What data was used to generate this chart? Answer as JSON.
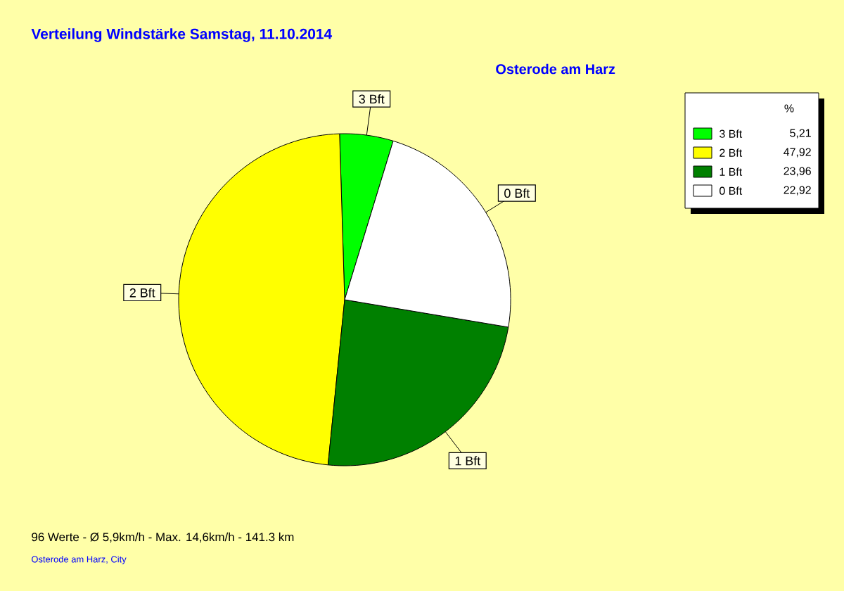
{
  "chart_data": {
    "type": "pie",
    "title": "Verteilung Windstärke  Samstag, 11.10.2014",
    "subtitle": "Osterode am Harz",
    "categories": [
      "3 Bft",
      "2 Bft",
      "1 Bft",
      "0 Bft"
    ],
    "values": [
      5.21,
      47.92,
      23.96,
      22.92
    ],
    "colors": [
      "#00ff00",
      "#ffff00",
      "#008000",
      "#ffffff"
    ],
    "value_labels": [
      "5,21",
      "47,92",
      "23,96",
      "22,92"
    ],
    "legend_title": "%",
    "legend": "top right",
    "annotations": [
      "96 Werte - Ø 5,9km/h - Max. 14,6km/h - 141.3 km",
      "Osterode am Harz, City"
    ]
  }
}
